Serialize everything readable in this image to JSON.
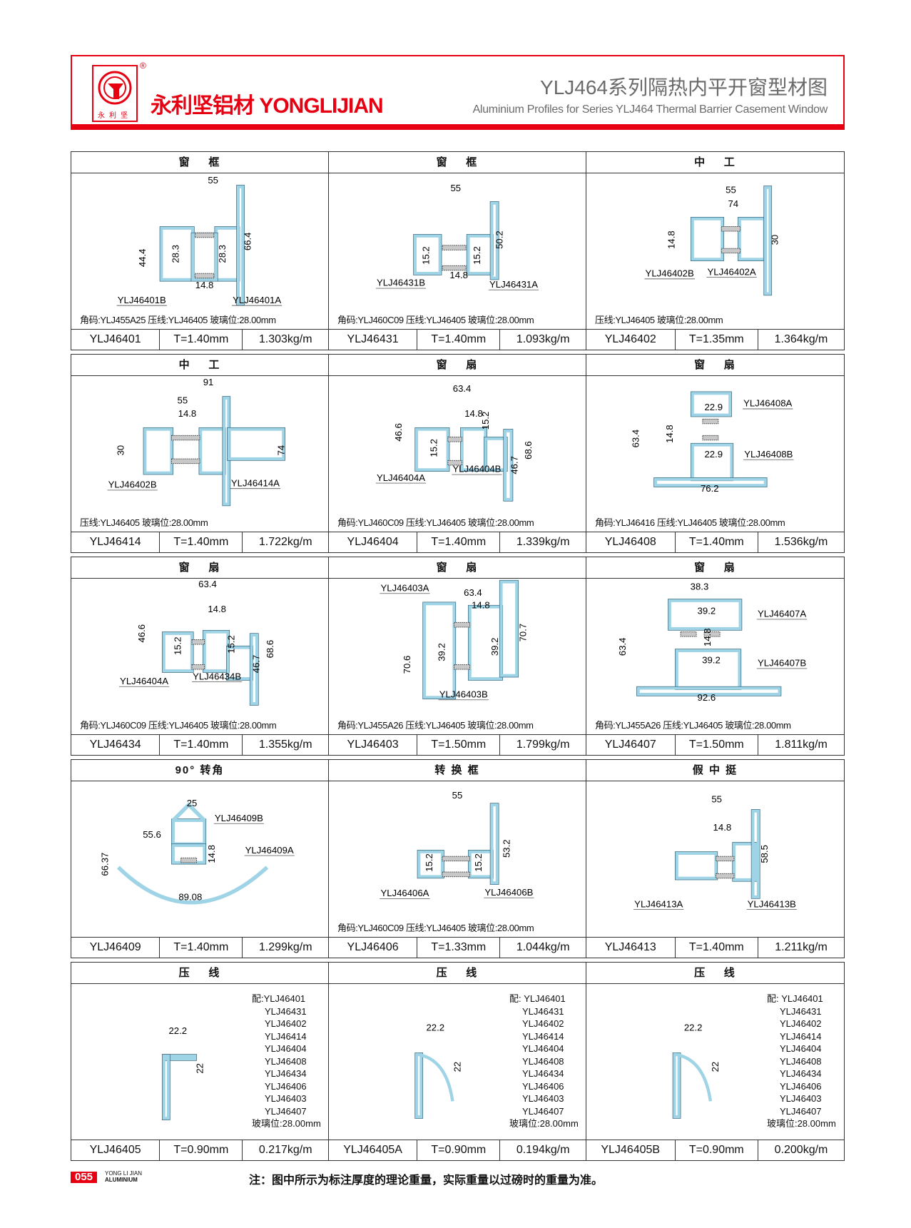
{
  "header": {
    "logo_text": "永利坚",
    "brand": "永利坚铝材 YONGLIJIAN",
    "title_cn": "YLJ464系列隔热内平开窗型材图",
    "title_en": "Aluminium Profiles for Series YLJ464 Thermal Barrier Casement Window",
    "brand_color": "#e60012"
  },
  "profile_color": "#9fd3e6",
  "cells": [
    {
      "title": "窗    框",
      "dims": [
        "55",
        "44.4",
        "28.3",
        "28.3",
        "14.8",
        "66.4"
      ],
      "parts": [
        "YLJ46401B",
        "YLJ46401A"
      ],
      "note": "角码:YLJ455A25  压线:YLJ46405  玻璃位:28.00mm",
      "code": "YLJ46401",
      "thickness": "T=1.40mm",
      "weight": "1.303kg/m"
    },
    {
      "title": "窗    框",
      "dims": [
        "55",
        "15.2",
        "15.2",
        "14.8",
        "50.2"
      ],
      "parts": [
        "YLJ46431B",
        "YLJ46431A"
      ],
      "note": "角码:YLJ460C09  压线:YLJ46405  玻璃位:28.00mm",
      "code": "YLJ46431",
      "thickness": "T=1.40mm",
      "weight": "1.093kg/m"
    },
    {
      "title": "中    工",
      "dims": [
        "55",
        "14.8",
        "30",
        "74"
      ],
      "parts": [
        "YLJ46402B",
        "YLJ46402A"
      ],
      "note": "压线:YLJ46405  玻璃位:28.00mm",
      "code": "YLJ46402",
      "thickness": "T=1.35mm",
      "weight": "1.364kg/m"
    },
    {
      "title": "中    工",
      "dims": [
        "91",
        "55",
        "14.8",
        "30",
        "74"
      ],
      "parts": [
        "YLJ46402B",
        "YLJ46414A"
      ],
      "note": "压线:YLJ46405  玻璃位:28.00mm",
      "code": "YLJ46414",
      "thickness": "T=1.40mm",
      "weight": "1.722kg/m"
    },
    {
      "title": "窗    扇",
      "dims": [
        "63.4",
        "14.8",
        "15.2",
        "46.6",
        "15.2",
        "68.6",
        "46.7"
      ],
      "parts": [
        "YLJ46404A",
        "YLJ46404B"
      ],
      "note": "角码:YLJ460C09  压线:YLJ46405  玻璃位:28.00mm",
      "code": "YLJ46404",
      "thickness": "T=1.40mm",
      "weight": "1.339kg/m"
    },
    {
      "title": "窗    扇",
      "dims": [
        "22.9",
        "63.4",
        "14.8",
        "22.9",
        "76.2"
      ],
      "parts": [
        "YLJ46408A",
        "YLJ46408B"
      ],
      "note": "角码:YLJ46416  压线:YLJ46405  玻璃位:28.00mm",
      "code": "YLJ46408",
      "thickness": "T=1.40mm",
      "weight": "1.536kg/m"
    },
    {
      "title": "窗    扇",
      "dims": [
        "63.4",
        "14.8",
        "46.6",
        "15.2",
        "15.2",
        "68.6",
        "46.7"
      ],
      "parts": [
        "YLJ46404A",
        "YLJ46434B"
      ],
      "note": "角码:YLJ460C09 压线:YLJ46405 玻璃位:28.00mm",
      "code": "YLJ46434",
      "thickness": "T=1.40mm",
      "weight": "1.355kg/m"
    },
    {
      "title": "窗    扇",
      "dims": [
        "63.4",
        "14.8",
        "70.7",
        "39.2",
        "39.2",
        "70.6"
      ],
      "parts": [
        "YLJ46403A",
        "YLJ46403B"
      ],
      "note": "角码:YLJ455A26  压线:YLJ46405  玻璃位:28.00mm",
      "code": "YLJ46403",
      "thickness": "T=1.50mm",
      "weight": "1.799kg/m"
    },
    {
      "title": "窗    扇",
      "dims": [
        "38.3",
        "39.2",
        "14.8",
        "63.4",
        "39.2",
        "92.6"
      ],
      "parts": [
        "YLJ46407A",
        "YLJ46407B"
      ],
      "note": "角码:YLJ455A26  压线:YLJ46405  玻璃位:28.00mm",
      "code": "YLJ46407",
      "thickness": "T=1.50mm",
      "weight": "1.811kg/m"
    },
    {
      "title": "90° 转角",
      "dims": [
        "25",
        "55.6",
        "14.8",
        "66.37",
        "89.08"
      ],
      "parts": [
        "YLJ46409B",
        "YLJ46409A"
      ],
      "note": "",
      "code": "YLJ46409",
      "thickness": "T=1.40mm",
      "weight": "1.299kg/m"
    },
    {
      "title": "转 换 框",
      "dims": [
        "55",
        "53.2",
        "15.2",
        "15.2"
      ],
      "parts": [
        "YLJ46406A",
        "YLJ46406B"
      ],
      "note": "角码:YLJ460C09  压线:YLJ46405  玻璃位:28.00mm",
      "code": "YLJ46406",
      "thickness": "T=1.33mm",
      "weight": "1.044kg/m"
    },
    {
      "title": "假 中 挺",
      "dims": [
        "55",
        "14.8",
        "58.5"
      ],
      "parts": [
        "YLJ46413A",
        "YLJ46413B"
      ],
      "note": "",
      "code": "YLJ46413",
      "thickness": "T=1.40mm",
      "weight": "1.211kg/m"
    },
    {
      "title": "压    线",
      "dims": [
        "22.2",
        "22"
      ],
      "parts": [],
      "list": [
        "配:YLJ46401",
        "YLJ46431",
        "YLJ46402",
        "YLJ46414",
        "YLJ46404",
        "YLJ46408",
        "YLJ46434",
        "YLJ46406",
        "YLJ46403",
        "YLJ46407",
        "玻璃位:28.00mm"
      ],
      "note": "",
      "code": "YLJ46405",
      "thickness": "T=0.90mm",
      "weight": "0.217kg/m"
    },
    {
      "title": "压    线",
      "dims": [
        "22.2",
        "22"
      ],
      "parts": [],
      "list": [
        "配: YLJ46401",
        "YLJ46431",
        "YLJ46402",
        "YLJ46414",
        "YLJ46404",
        "YLJ46408",
        "YLJ46434",
        "YLJ46406",
        "YLJ46403",
        "YLJ46407",
        "玻璃位:28.00mm"
      ],
      "note": "",
      "code": "YLJ46405A",
      "thickness": "T=0.90mm",
      "weight": "0.194kg/m"
    },
    {
      "title": "压    线",
      "dims": [
        "22.2",
        "22"
      ],
      "parts": [],
      "list": [
        "配: YLJ46401",
        "YLJ46431",
        "YLJ46402",
        "YLJ46414",
        "YLJ46404",
        "YLJ46408",
        "YLJ46434",
        "YLJ46406",
        "YLJ46403",
        "YLJ46407",
        "玻璃位:28.00mm"
      ],
      "note": "",
      "code": "YLJ46405B",
      "thickness": "T=0.90mm",
      "weight": "0.200kg/m"
    }
  ],
  "footer": {
    "page": "055",
    "brand_line1": "YONG LI JIAN",
    "brand_line2": "ALUMINIUM",
    "note": "注：图中所示为标注厚度的理论重量，实际重量以过磅时的重量为准。"
  }
}
